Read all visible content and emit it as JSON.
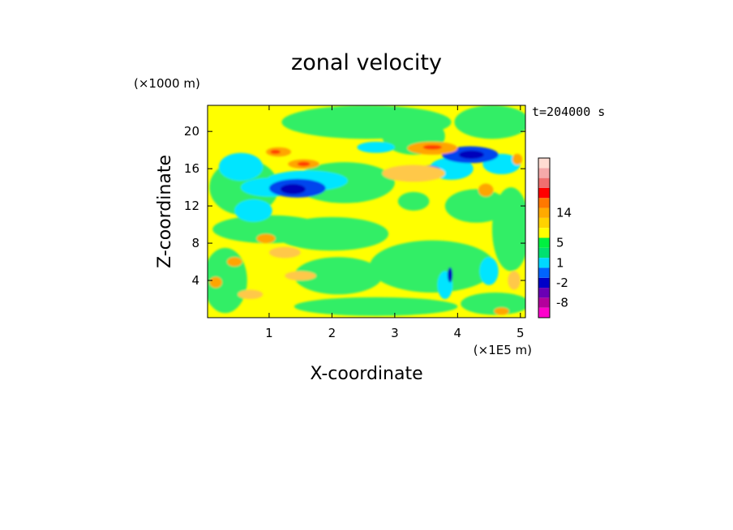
{
  "chart_data": {
    "type": "heatmap",
    "title": "zonal velocity",
    "xlabel": "X-coordinate",
    "ylabel": "Z-coordinate",
    "x_unit_label": "(×1E5 m)",
    "y_unit_label": "(×1000 m)",
    "time_label": "t=204000 s",
    "xlim": [
      0.02,
      5.08
    ],
    "ylim": [
      0.0,
      22.8
    ],
    "x_ticks": [
      "1",
      "2",
      "3",
      "4",
      "5"
    ],
    "x_tick_values": [
      1,
      2,
      3,
      4,
      5
    ],
    "y_ticks": [
      "4",
      "8",
      "12",
      "16",
      "20"
    ],
    "y_tick_values": [
      4,
      8,
      12,
      16,
      20
    ],
    "colorbar": {
      "labels": [
        "14",
        "5",
        "1",
        "-2",
        "-8"
      ],
      "label_level_index": [
        10,
        7,
        5,
        3,
        1
      ],
      "levels": [
        {
          "color": "#ff00cc"
        },
        {
          "color": "#b4009c"
        },
        {
          "color": "#6a00b4"
        },
        {
          "color": "#0000c8"
        },
        {
          "color": "#0064ff"
        },
        {
          "color": "#00d8ff"
        },
        {
          "color": "#00e070"
        },
        {
          "color": "#00f040"
        },
        {
          "color": "#ffff00"
        },
        {
          "color": "#ffd200"
        },
        {
          "color": "#ffaa00"
        },
        {
          "color": "#ff7800"
        },
        {
          "color": "#ff0000"
        },
        {
          "color": "#f07070"
        },
        {
          "color": "#f5aaaa"
        },
        {
          "color": "#ffdcd2"
        }
      ]
    },
    "field_colors": {
      "background": "#ffff00",
      "green": "#33ee66",
      "cyan": "#00e5ff",
      "blue": "#0044ee",
      "darkblue": "#0000bb",
      "orange": "#ffa500",
      "lightorange": "#ffc84a",
      "red": "#ff3c00"
    },
    "regions": [
      {
        "kind": "green",
        "cx": 2.55,
        "cy": 21.0,
        "rx": 1.35,
        "ry": 1.8
      },
      {
        "kind": "green",
        "cx": 4.55,
        "cy": 21.0,
        "rx": 0.6,
        "ry": 1.8
      },
      {
        "kind": "green",
        "cx": 3.3,
        "cy": 19.5,
        "rx": 0.5,
        "ry": 2.0
      },
      {
        "kind": "green",
        "cx": 0.6,
        "cy": 14.0,
        "rx": 0.55,
        "ry": 3.0
      },
      {
        "kind": "green",
        "cx": 2.2,
        "cy": 14.5,
        "rx": 0.8,
        "ry": 2.2
      },
      {
        "kind": "green",
        "cx": 1.0,
        "cy": 9.5,
        "rx": 0.9,
        "ry": 1.5
      },
      {
        "kind": "green",
        "cx": 2.0,
        "cy": 9.0,
        "rx": 0.9,
        "ry": 1.8
      },
      {
        "kind": "green",
        "cx": 0.3,
        "cy": 4.0,
        "rx": 0.35,
        "ry": 3.5
      },
      {
        "kind": "green",
        "cx": 2.1,
        "cy": 4.5,
        "rx": 0.7,
        "ry": 2.0
      },
      {
        "kind": "green",
        "cx": 3.6,
        "cy": 5.5,
        "rx": 1.0,
        "ry": 2.8
      },
      {
        "kind": "green",
        "cx": 4.85,
        "cy": 9.5,
        "rx": 0.3,
        "ry": 4.5
      },
      {
        "kind": "green",
        "cx": 4.3,
        "cy": 12.0,
        "rx": 0.5,
        "ry": 1.8
      },
      {
        "kind": "green",
        "cx": 2.7,
        "cy": 1.2,
        "rx": 1.3,
        "ry": 1.0
      },
      {
        "kind": "green",
        "cx": 4.6,
        "cy": 1.5,
        "rx": 0.55,
        "ry": 1.2
      },
      {
        "kind": "green",
        "cx": 3.3,
        "cy": 12.5,
        "rx": 0.25,
        "ry": 1.0
      },
      {
        "kind": "cyan",
        "cx": 0.55,
        "cy": 16.2,
        "rx": 0.35,
        "ry": 1.5
      },
      {
        "kind": "cyan",
        "cx": 1.0,
        "cy": 14.0,
        "rx": 0.45,
        "ry": 1.0
      },
      {
        "kind": "cyan",
        "cx": 0.75,
        "cy": 11.5,
        "rx": 0.3,
        "ry": 1.2
      },
      {
        "kind": "cyan",
        "cx": 3.9,
        "cy": 16.0,
        "rx": 0.35,
        "ry": 1.2
      },
      {
        "kind": "cyan",
        "cx": 4.7,
        "cy": 16.5,
        "rx": 0.3,
        "ry": 1.1
      },
      {
        "kind": "cyan",
        "cx": 2.7,
        "cy": 18.3,
        "rx": 0.3,
        "ry": 0.6
      },
      {
        "kind": "cyan",
        "cx": 1.6,
        "cy": 14.7,
        "rx": 0.65,
        "ry": 1.1
      },
      {
        "kind": "cyan",
        "cx": 4.5,
        "cy": 5.0,
        "rx": 0.15,
        "ry": 1.5
      },
      {
        "kind": "cyan",
        "cx": 3.8,
        "cy": 3.5,
        "rx": 0.12,
        "ry": 1.5
      },
      {
        "kind": "blue",
        "cx": 1.45,
        "cy": 13.9,
        "rx": 0.45,
        "ry": 1.0
      },
      {
        "kind": "blue",
        "cx": 4.2,
        "cy": 17.5,
        "rx": 0.45,
        "ry": 0.9
      },
      {
        "kind": "blue",
        "cx": 3.55,
        "cy": 15.9,
        "rx": 0.18,
        "ry": 0.45
      },
      {
        "kind": "darkblue",
        "cx": 1.38,
        "cy": 13.8,
        "rx": 0.2,
        "ry": 0.55
      },
      {
        "kind": "darkblue",
        "cx": 4.22,
        "cy": 17.5,
        "rx": 0.2,
        "ry": 0.45
      },
      {
        "kind": "darkblue",
        "cx": 3.55,
        "cy": 15.9,
        "rx": 0.1,
        "ry": 0.25
      },
      {
        "kind": "darkblue",
        "cx": 3.88,
        "cy": 4.6,
        "rx": 0.04,
        "ry": 0.8
      },
      {
        "kind": "orange",
        "cx": 1.15,
        "cy": 17.8,
        "rx": 0.2,
        "ry": 0.5
      },
      {
        "kind": "orange",
        "cx": 1.55,
        "cy": 16.5,
        "rx": 0.25,
        "ry": 0.5
      },
      {
        "kind": "orange",
        "cx": 3.6,
        "cy": 18.2,
        "rx": 0.4,
        "ry": 0.7
      },
      {
        "kind": "orange",
        "cx": 4.45,
        "cy": 13.7,
        "rx": 0.12,
        "ry": 0.7
      },
      {
        "kind": "orange",
        "cx": 4.95,
        "cy": 17.0,
        "rx": 0.08,
        "ry": 0.6
      },
      {
        "kind": "orange",
        "cx": 0.95,
        "cy": 8.5,
        "rx": 0.15,
        "ry": 0.5
      },
      {
        "kind": "orange",
        "cx": 0.45,
        "cy": 6.0,
        "rx": 0.12,
        "ry": 0.5
      },
      {
        "kind": "orange",
        "cx": 0.15,
        "cy": 3.8,
        "rx": 0.1,
        "ry": 0.6
      },
      {
        "kind": "orange",
        "cx": 4.7,
        "cy": 0.7,
        "rx": 0.12,
        "ry": 0.4
      },
      {
        "kind": "lightorange",
        "cx": 1.25,
        "cy": 7.0,
        "rx": 0.25,
        "ry": 0.6
      },
      {
        "kind": "lightorange",
        "cx": 1.5,
        "cy": 4.5,
        "rx": 0.25,
        "ry": 0.5
      },
      {
        "kind": "lightorange",
        "cx": 0.7,
        "cy": 2.5,
        "rx": 0.2,
        "ry": 0.5
      },
      {
        "kind": "lightorange",
        "cx": 3.3,
        "cy": 15.5,
        "rx": 0.5,
        "ry": 0.9
      },
      {
        "kind": "lightorange",
        "cx": 4.9,
        "cy": 4.0,
        "rx": 0.1,
        "ry": 1.0
      },
      {
        "kind": "red",
        "cx": 3.6,
        "cy": 18.3,
        "rx": 0.15,
        "ry": 0.25
      },
      {
        "kind": "red",
        "cx": 1.55,
        "cy": 16.5,
        "rx": 0.1,
        "ry": 0.25
      },
      {
        "kind": "red",
        "cx": 1.1,
        "cy": 17.8,
        "rx": 0.08,
        "ry": 0.22
      }
    ]
  }
}
